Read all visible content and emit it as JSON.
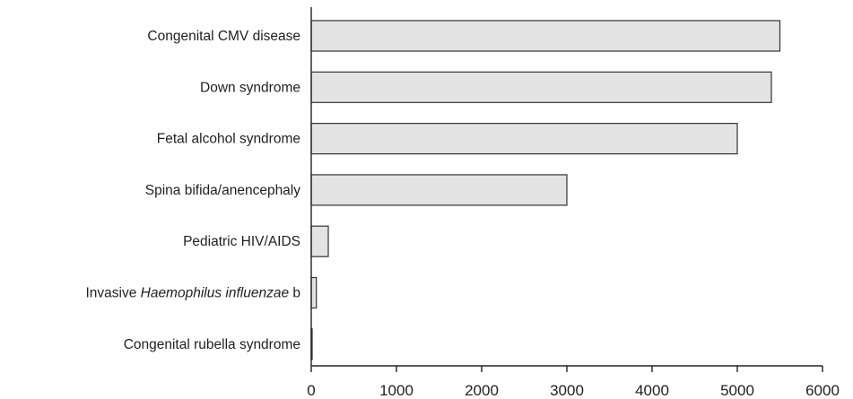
{
  "chart_data": {
    "type": "bar",
    "orientation": "horizontal",
    "categories": [
      "Congenital CMV disease",
      "Down syndrome",
      "Fetal alcohol syndrome",
      "Spina bifida/anencephaly",
      "Pediatric HIV/AIDS",
      "Invasive Haemophilus influenzae b",
      "Congenital rubella syndrome"
    ],
    "category_label_parts": [
      [
        {
          "text": "Congenital CMV disease",
          "italic": false
        }
      ],
      [
        {
          "text": "Down syndrome",
          "italic": false
        }
      ],
      [
        {
          "text": "Fetal alcohol syndrome",
          "italic": false
        }
      ],
      [
        {
          "text": "Spina bifida/anencephaly",
          "italic": false
        }
      ],
      [
        {
          "text": "Pediatric HIV/AIDS",
          "italic": false
        }
      ],
      [
        {
          "text": "Invasive ",
          "italic": false
        },
        {
          "text": "Haemophilus influenzae",
          "italic": true
        },
        {
          "text": " b",
          "italic": false
        }
      ],
      [
        {
          "text": "Congenital rubella syndrome",
          "italic": false
        }
      ]
    ],
    "values": [
      5500,
      5400,
      5000,
      3000,
      200,
      60,
      10
    ],
    "xlim": [
      0,
      6000
    ],
    "xticks": [
      0,
      1000,
      2000,
      3000,
      4000,
      5000,
      6000
    ],
    "xtick_labels": [
      "0",
      "1000",
      "2000",
      "3000",
      "4000",
      "5000",
      "6000"
    ],
    "title": "",
    "xlabel": "",
    "ylabel": "",
    "grid": false,
    "legend": "none",
    "colors": {
      "bar_fill": "#e3e3e3",
      "bar_stroke": "#333333",
      "axis": "#222222",
      "text": "#1f1f1f"
    }
  }
}
